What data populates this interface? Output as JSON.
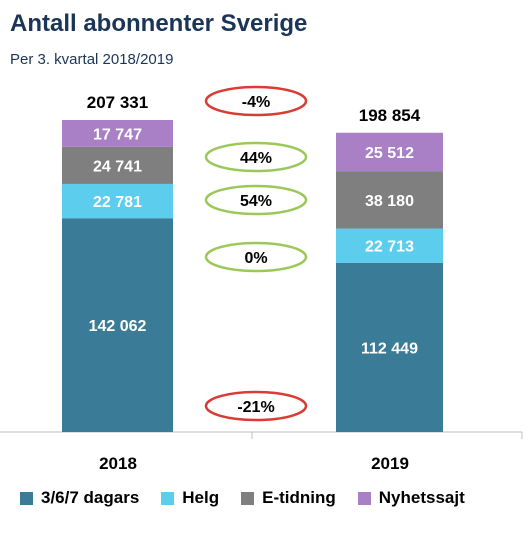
{
  "title": "Antall abonnenter Sverige",
  "subtitle": "Per 3. kvartal 2018/2019",
  "chart_data": {
    "type": "bar",
    "stacked": true,
    "categories": [
      "2018",
      "2019"
    ],
    "totals": [
      207331,
      198854
    ],
    "total_labels": [
      "207 331",
      "198 854"
    ],
    "series": [
      {
        "name": "3/6/7 dagars",
        "color": "#3a7b97",
        "values": [
          142062,
          112449
        ],
        "labels": [
          "142 062",
          "112 449"
        ]
      },
      {
        "name": "Helg",
        "color": "#5dcdee",
        "values": [
          22781,
          22713
        ],
        "labels": [
          "22 781",
          "22 713"
        ]
      },
      {
        "name": "E-tidning",
        "color": "#7f7f80",
        "values": [
          24741,
          38180
        ],
        "labels": [
          "24 741",
          "38 180"
        ]
      },
      {
        "name": "Nyhetssajt",
        "color": "#a97fc6",
        "values": [
          17747,
          25512
        ],
        "labels": [
          "17 747",
          "25 512"
        ]
      }
    ],
    "changes": [
      {
        "label": "-4%",
        "color": "#d93b35",
        "refers_to": "total"
      },
      {
        "label": "44%",
        "color": "#9cc85a",
        "refers_to": "Nyhetssajt"
      },
      {
        "label": "54%",
        "color": "#9cc85a",
        "refers_to": "E-tidning"
      },
      {
        "label": "0%",
        "color": "#9cc85a",
        "refers_to": "Helg"
      },
      {
        "label": "-21%",
        "color": "#d93b35",
        "refers_to": "3/6/7 dagars"
      }
    ],
    "legend_position": "bottom",
    "grid": false
  }
}
